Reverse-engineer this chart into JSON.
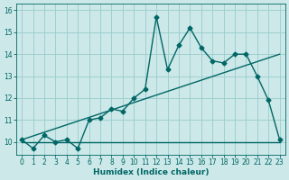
{
  "xlabel": "Humidex (Indice chaleur)",
  "bg_color": "#cce8e8",
  "grid_color": "#99cccc",
  "line_color": "#006666",
  "xlim": [
    -0.5,
    23.5
  ],
  "ylim": [
    9.4,
    16.3
  ],
  "x_ticks": [
    0,
    1,
    2,
    3,
    4,
    5,
    6,
    7,
    8,
    9,
    10,
    11,
    12,
    13,
    14,
    15,
    16,
    17,
    18,
    19,
    20,
    21,
    22,
    23
  ],
  "y_ticks": [
    10,
    11,
    12,
    13,
    14,
    15,
    16
  ],
  "curve1_x": [
    0,
    1,
    2,
    3,
    4,
    5,
    6,
    7,
    8,
    9,
    10,
    11,
    12,
    13,
    14,
    15,
    16,
    17,
    18,
    19,
    20,
    21,
    22,
    23
  ],
  "curve1_y": [
    10.1,
    9.7,
    10.3,
    10.0,
    10.1,
    9.7,
    11.0,
    11.1,
    11.5,
    11.4,
    12.0,
    12.4,
    15.7,
    13.3,
    14.4,
    15.2,
    14.3,
    13.7,
    13.6,
    14.0,
    14.0,
    13.0,
    11.9,
    10.1
  ],
  "curve2_x": [
    0,
    23
  ],
  "curve2_y": [
    10.0,
    10.0
  ],
  "curve3_x": [
    0,
    23
  ],
  "curve3_y": [
    10.1,
    14.0
  ],
  "marker_style": "D",
  "marker_size": 2.5,
  "line_width": 1.0,
  "tick_fontsize": 5.5,
  "xlabel_fontsize": 6.5
}
